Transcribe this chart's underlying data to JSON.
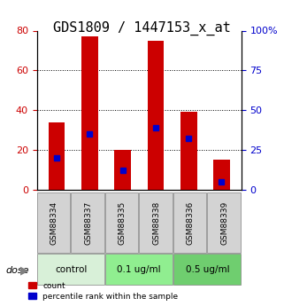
{
  "title": "GDS1809 / 1447153_x_at",
  "samples": [
    "GSM88334",
    "GSM88337",
    "GSM88335",
    "GSM88338",
    "GSM88336",
    "GSM88339"
  ],
  "count_values": [
    34,
    77,
    20,
    75,
    39,
    15
  ],
  "percentile_values": [
    20,
    35,
    12,
    39,
    32,
    5
  ],
  "groups": [
    {
      "label": "control",
      "indices": [
        0,
        1
      ],
      "color": "#d8f0d8"
    },
    {
      "label": "0.1 ug/ml",
      "indices": [
        2,
        3
      ],
      "color": "#90ee90"
    },
    {
      "label": "0.5 ug/ml",
      "indices": [
        4,
        5
      ],
      "color": "#90ee90"
    }
  ],
  "bar_color": "#cc0000",
  "percentile_color": "#0000cc",
  "left_ylim": [
    0,
    80
  ],
  "right_ylim": [
    0,
    100
  ],
  "left_yticks": [
    0,
    20,
    40,
    60,
    80
  ],
  "right_yticks": [
    0,
    25,
    50,
    75,
    100
  ],
  "right_yticklabels": [
    "0",
    "25",
    "50",
    "75",
    "100%"
  ],
  "grid_values": [
    20,
    40,
    60
  ],
  "bar_width": 0.5,
  "xlabel_color": "#cc0000",
  "right_tick_color": "#0000cc",
  "group_colors": [
    "#d8f0d8",
    "#a8e0a8",
    "#70d070"
  ],
  "dose_label": "dose",
  "legend_count": "count",
  "legend_percentile": "percentile rank within the sample",
  "title_fontsize": 11,
  "tick_fontsize": 8,
  "sample_label_bg": "#d3d3d3"
}
